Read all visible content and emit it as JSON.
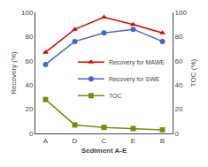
{
  "chart_data": {
    "type": "line",
    "categories": [
      "A",
      "D",
      "C",
      "E",
      "B"
    ],
    "series": [
      {
        "name": "Recovery for MAWE",
        "color": "#dd0000",
        "marker": "triangle-up",
        "values": [
          67,
          86,
          96,
          90,
          83
        ]
      },
      {
        "name": "Recovery for SWE",
        "color": "#4466cc",
        "marker": "circle",
        "values": [
          57,
          76,
          83,
          86,
          76
        ]
      },
      {
        "name": "TOC",
        "color": "#7a8a10",
        "marker": "square",
        "axis": "y2",
        "values": [
          28,
          7,
          5,
          4,
          3
        ]
      }
    ],
    "xlabel": "Sediment A-E",
    "ylabel": "Recovery (%)",
    "y2label": "TOC (%)",
    "ylim": [
      0,
      100
    ],
    "yticks": [
      0,
      20,
      40,
      60,
      80,
      100
    ],
    "y2lim": [
      0,
      100
    ],
    "y2ticks": [
      0,
      20,
      40,
      60,
      80,
      100
    ],
    "grid": false,
    "legend": "right"
  }
}
